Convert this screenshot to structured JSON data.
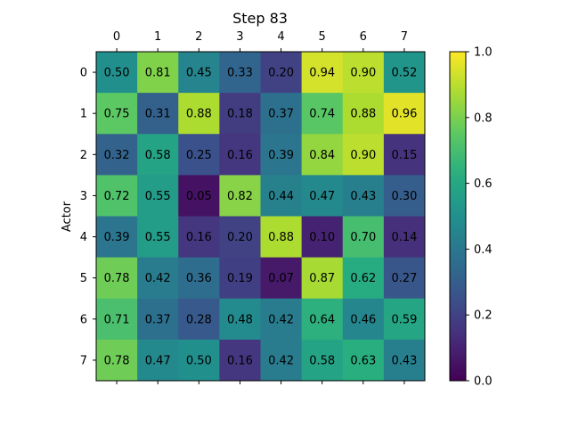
{
  "chart_data": {
    "type": "heatmap",
    "title": "Step 83",
    "xlabel": "",
    "ylabel": "Actor",
    "x_ticks": [
      "0",
      "1",
      "2",
      "3",
      "4",
      "5",
      "6",
      "7"
    ],
    "y_ticks": [
      "0",
      "1",
      "2",
      "3",
      "4",
      "5",
      "6",
      "7"
    ],
    "values": [
      [
        0.5,
        0.81,
        0.45,
        0.33,
        0.2,
        0.94,
        0.9,
        0.52
      ],
      [
        0.75,
        0.31,
        0.88,
        0.18,
        0.37,
        0.74,
        0.88,
        0.96
      ],
      [
        0.32,
        0.58,
        0.25,
        0.16,
        0.39,
        0.84,
        0.9,
        0.15
      ],
      [
        0.72,
        0.55,
        0.05,
        0.82,
        0.44,
        0.47,
        0.43,
        0.3
      ],
      [
        0.39,
        0.55,
        0.16,
        0.2,
        0.88,
        0.1,
        0.7,
        0.14
      ],
      [
        0.78,
        0.42,
        0.36,
        0.19,
        0.07,
        0.87,
        0.62,
        0.27
      ],
      [
        0.71,
        0.37,
        0.28,
        0.48,
        0.42,
        0.64,
        0.46,
        0.59
      ],
      [
        0.78,
        0.47,
        0.5,
        0.16,
        0.42,
        0.58,
        0.63,
        0.43
      ]
    ],
    "colormap": "viridis",
    "clim": [
      0.0,
      1.0
    ],
    "colorbar_ticks": [
      "0.0",
      "0.2",
      "0.4",
      "0.6",
      "0.8",
      "1.0"
    ],
    "x_axis_position": "top",
    "grid": false,
    "annotations": "cell values shown with two decimals"
  }
}
